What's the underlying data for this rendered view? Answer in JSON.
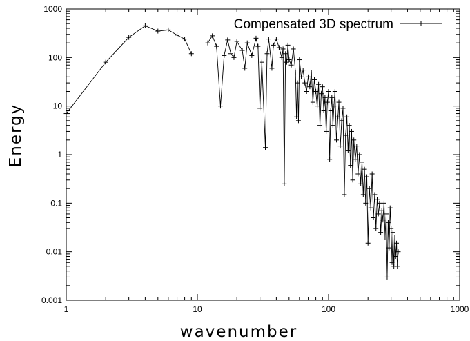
{
  "chart_data": {
    "type": "line",
    "title": "",
    "xlabel": "wavenumber",
    "ylabel": "Energy",
    "x_scale": "log",
    "y_scale": "log",
    "xlim": [
      1,
      1000
    ],
    "ylim": [
      0.001,
      1000
    ],
    "grid": false,
    "legend_position": "top-right",
    "x_tick_labels": [
      "1",
      "10",
      "100",
      "1000"
    ],
    "y_tick_labels": [
      "0.001",
      "0.01",
      "0.1",
      "1",
      "10",
      "100",
      "1000"
    ],
    "series": [
      {
        "name": "Compensated 3D spectrum",
        "marker": "+",
        "color": "#000000",
        "points": [
          [
            1,
            7
          ],
          [
            2,
            80
          ],
          [
            3,
            260
          ],
          [
            4,
            450
          ],
          [
            5,
            350
          ],
          [
            6,
            370
          ],
          [
            7,
            290
          ],
          [
            8,
            240
          ],
          [
            9,
            120
          ],
          [
            12,
            200
          ],
          [
            13,
            280
          ],
          [
            14,
            170
          ],
          [
            15,
            10
          ],
          [
            16,
            110
          ],
          [
            17,
            230
          ],
          [
            18,
            120
          ],
          [
            19,
            100
          ],
          [
            20,
            215
          ],
          [
            22,
            140
          ],
          [
            23,
            60
          ],
          [
            24,
            200
          ],
          [
            26,
            110
          ],
          [
            28,
            250
          ],
          [
            29,
            170
          ],
          [
            30,
            9
          ],
          [
            31,
            80
          ],
          [
            33,
            1.4
          ],
          [
            34,
            120
          ],
          [
            35,
            240
          ],
          [
            37,
            60
          ],
          [
            38,
            180
          ],
          [
            40,
            240
          ],
          [
            42,
            160
          ],
          [
            44,
            100
          ],
          [
            45,
            150
          ],
          [
            46,
            0.25
          ],
          [
            47,
            120
          ],
          [
            48,
            80
          ],
          [
            49,
            180
          ],
          [
            50,
            90
          ],
          [
            52,
            70
          ],
          [
            54,
            150
          ],
          [
            56,
            50
          ],
          [
            57,
            6
          ],
          [
            58,
            30
          ],
          [
            59,
            5
          ],
          [
            60,
            90
          ],
          [
            62,
            40
          ],
          [
            64,
            55
          ],
          [
            66,
            30
          ],
          [
            68,
            20
          ],
          [
            70,
            40
          ],
          [
            72,
            25
          ],
          [
            74,
            50
          ],
          [
            76,
            12
          ],
          [
            78,
            35
          ],
          [
            80,
            20
          ],
          [
            82,
            10
          ],
          [
            84,
            28
          ],
          [
            86,
            4
          ],
          [
            88,
            18
          ],
          [
            90,
            25
          ],
          [
            92,
            8
          ],
          [
            94,
            15
          ],
          [
            96,
            3
          ],
          [
            98,
            12
          ],
          [
            100,
            20
          ],
          [
            102,
            0.8
          ],
          [
            104,
            8
          ],
          [
            106,
            15
          ],
          [
            108,
            4
          ],
          [
            110,
            10
          ],
          [
            112,
            20
          ],
          [
            115,
            2
          ],
          [
            118,
            6
          ],
          [
            120,
            12
          ],
          [
            123,
            1.5
          ],
          [
            126,
            5
          ],
          [
            129,
            9
          ],
          [
            132,
            0.15
          ],
          [
            135,
            2.5
          ],
          [
            138,
            6
          ],
          [
            141,
            1.2
          ],
          [
            144,
            4
          ],
          [
            147,
            0.6
          ],
          [
            150,
            3
          ],
          [
            153,
            0.3
          ],
          [
            156,
            2
          ],
          [
            160,
            0.8
          ],
          [
            164,
            1.5
          ],
          [
            168,
            0.4
          ],
          [
            172,
            1
          ],
          [
            176,
            0.25
          ],
          [
            180,
            0.7
          ],
          [
            184,
            0.15
          ],
          [
            188,
            0.5
          ],
          [
            192,
            0.1
          ],
          [
            196,
            0.35
          ],
          [
            200,
            0.015
          ],
          [
            205,
            0.2
          ],
          [
            210,
            0.08
          ],
          [
            215,
            0.4
          ],
          [
            220,
            0.05
          ],
          [
            225,
            0.15
          ],
          [
            230,
            0.03
          ],
          [
            235,
            0.12
          ],
          [
            240,
            0.06
          ],
          [
            245,
            0.1
          ],
          [
            250,
            0.025
          ],
          [
            255,
            0.07
          ],
          [
            260,
            0.045
          ],
          [
            265,
            0.1
          ],
          [
            270,
            0.02
          ],
          [
            275,
            0.06
          ],
          [
            280,
            0.003
          ],
          [
            285,
            0.04
          ],
          [
            290,
            0.012
          ],
          [
            295,
            0.08
          ],
          [
            300,
            0.03
          ],
          [
            305,
            0.006
          ],
          [
            310,
            0.025
          ],
          [
            315,
            0.005
          ],
          [
            320,
            0.02
          ],
          [
            325,
            0.008
          ],
          [
            330,
            0.015
          ],
          [
            335,
            0.005
          ],
          [
            340,
            0.01
          ]
        ]
      }
    ]
  }
}
